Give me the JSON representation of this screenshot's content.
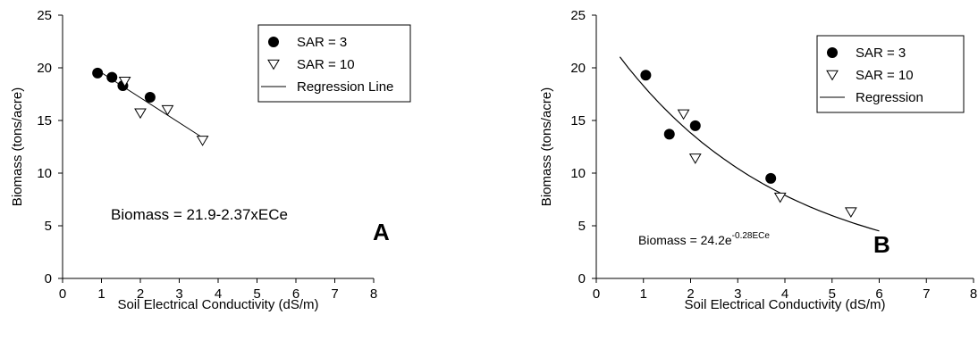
{
  "chart_data": [
    {
      "type": "scatter",
      "panel_label": "A",
      "xlabel": "Soil Electrical Conductivity  (dS/m)",
      "ylabel": "Biomass (tons/acre)",
      "xlim": [
        0,
        8
      ],
      "ylim": [
        0,
        25
      ],
      "x_ticks": [
        "0",
        "1",
        "2",
        "3",
        "4",
        "5",
        "6",
        "7",
        "8"
      ],
      "y_ticks": [
        "0",
        "5",
        "10",
        "15",
        "20",
        "25"
      ],
      "series": [
        {
          "name": "SAR = 3",
          "marker": "filled-circle",
          "x": [
            0.9,
            1.27,
            1.55,
            2.25
          ],
          "y": [
            19.5,
            19.1,
            18.3,
            17.2
          ]
        },
        {
          "name": "SAR = 10",
          "marker": "open-triangle-down",
          "x": [
            1.6,
            2.0,
            2.7,
            3.6
          ],
          "y": [
            18.7,
            15.7,
            16.0,
            13.1
          ]
        },
        {
          "name": "Regression Line",
          "marker": "line",
          "x": [
            0.9,
            3.6
          ],
          "y": [
            19.77,
            13.37
          ]
        }
      ],
      "equation": "Biomass = 21.9-2.37xECe",
      "legend_position": "top-right",
      "grid": false
    },
    {
      "type": "scatter",
      "panel_label": "B",
      "xlabel": "Soil Electrical Conductivity (dS/m)",
      "ylabel": "Biomass  (tons/acre)",
      "xlim": [
        0,
        8
      ],
      "ylim": [
        0,
        25
      ],
      "x_ticks": [
        "0",
        "1",
        "2",
        "3",
        "4",
        "5",
        "6",
        "7",
        "8"
      ],
      "y_ticks": [
        "0",
        "5",
        "10",
        "15",
        "20",
        "25"
      ],
      "series": [
        {
          "name": "SAR = 3",
          "marker": "filled-circle",
          "x": [
            1.05,
            1.55,
            2.1,
            3.7
          ],
          "y": [
            19.3,
            13.7,
            14.5,
            9.5
          ]
        },
        {
          "name": "SAR = 10",
          "marker": "open-triangle-down",
          "x": [
            1.85,
            2.1,
            3.9,
            5.4
          ],
          "y": [
            15.6,
            11.4,
            7.7,
            6.3
          ]
        },
        {
          "name": "Regression",
          "marker": "curve",
          "model": {
            "a": 24.2,
            "b": -0.28,
            "x_from": 0.5,
            "x_to": 6.0
          }
        }
      ],
      "equation": {
        "base": "Biomass = 24.2e",
        "exponent": "-0.28ECe"
      },
      "legend_position": "top-right",
      "grid": false
    }
  ]
}
